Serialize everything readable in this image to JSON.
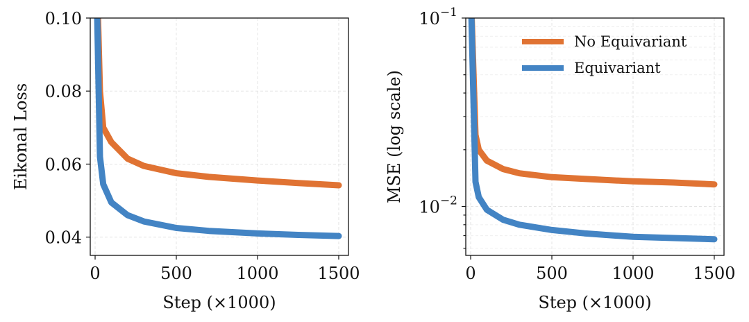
{
  "colors": {
    "no_equivariant": "#e07333",
    "equivariant": "#4384c4"
  },
  "chart_data": [
    {
      "type": "line",
      "title": "",
      "xlabel": "Step (×1000)",
      "ylabel": "Eikonal Loss",
      "xlim": [
        -30,
        1560
      ],
      "ylim": [
        0.035,
        0.1
      ],
      "yscale": "linear",
      "xticks": [
        0,
        500,
        1000,
        1500
      ],
      "xtick_labels": [
        "0",
        "500",
        "1000",
        "1500"
      ],
      "yticks": [
        0.04,
        0.06,
        0.08,
        0.1
      ],
      "ytick_labels": [
        "0.04",
        "0.06",
        "0.08",
        "0.10"
      ],
      "grid": true,
      "series": [
        {
          "name": "No Equivariant",
          "x": [
            0,
            30,
            50,
            100,
            200,
            300,
            500,
            700,
            1000,
            1250,
            1500
          ],
          "y": [
            0.13,
            0.08,
            0.07,
            0.066,
            0.0615,
            0.0595,
            0.0575,
            0.0565,
            0.0555,
            0.0548,
            0.0542
          ]
        },
        {
          "name": "Equivariant",
          "x": [
            0,
            30,
            50,
            100,
            200,
            300,
            500,
            700,
            1000,
            1250,
            1500
          ],
          "y": [
            0.13,
            0.062,
            0.0545,
            0.0495,
            0.046,
            0.0443,
            0.0425,
            0.0417,
            0.041,
            0.0406,
            0.0403
          ]
        }
      ]
    },
    {
      "type": "line",
      "title": "",
      "xlabel": "Step (×1000)",
      "ylabel": "MSE (log scale)",
      "xlim": [
        -30,
        1560
      ],
      "ylim": [
        0.0055,
        0.1
      ],
      "yscale": "log",
      "xticks": [
        0,
        500,
        1000,
        1500
      ],
      "xtick_labels": [
        "0",
        "500",
        "1000",
        "1500"
      ],
      "yticks": [
        0.01,
        0.1
      ],
      "ytick_bases": [
        "10",
        "10"
      ],
      "ytick_exponents": [
        "−2",
        "−1"
      ],
      "grid": true,
      "legend": {
        "position": "top-right",
        "entries": [
          "No Equivariant",
          "Equivariant"
        ]
      },
      "series": [
        {
          "name": "No Equivariant",
          "x": [
            0,
            30,
            50,
            100,
            200,
            300,
            500,
            700,
            1000,
            1250,
            1500
          ],
          "y": [
            0.15,
            0.024,
            0.02,
            0.0175,
            0.0158,
            0.015,
            0.0143,
            0.014,
            0.0136,
            0.0134,
            0.0131
          ]
        },
        {
          "name": "Equivariant",
          "x": [
            0,
            30,
            50,
            100,
            200,
            300,
            500,
            700,
            1000,
            1250,
            1500
          ],
          "y": [
            0.15,
            0.0135,
            0.0112,
            0.0096,
            0.0085,
            0.008,
            0.0075,
            0.0072,
            0.0069,
            0.0068,
            0.0067
          ]
        }
      ]
    }
  ]
}
